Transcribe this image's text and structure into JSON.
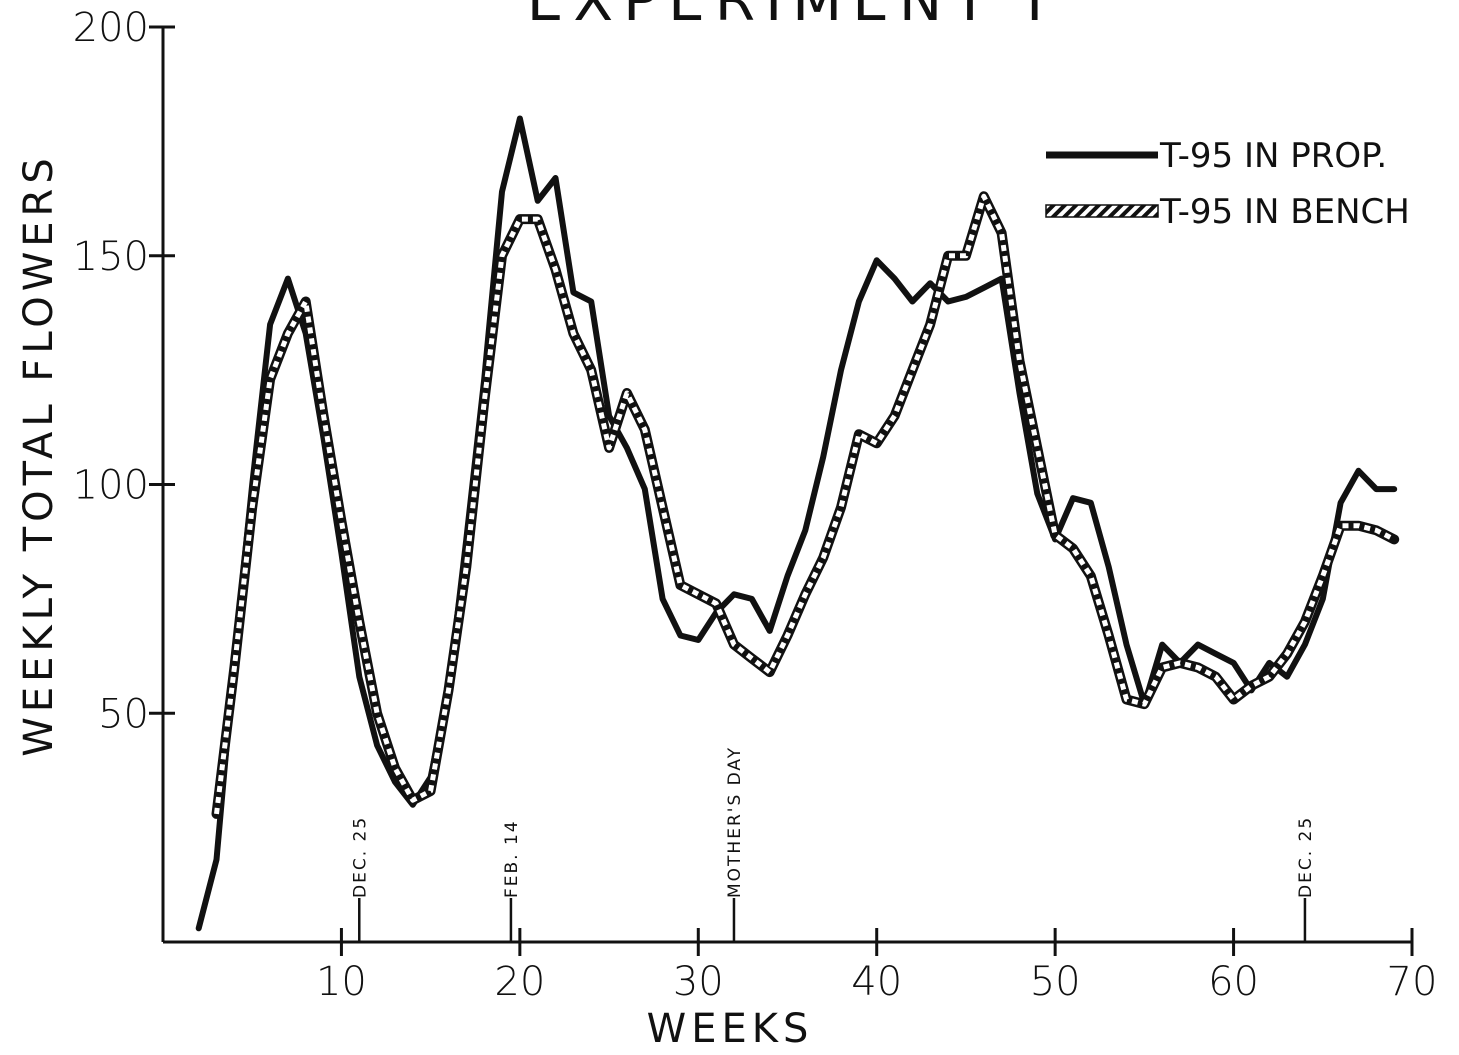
{
  "chart_data": {
    "type": "line",
    "title": "EXPERIMENT I",
    "xlabel": "WEEKS",
    "ylabel": "WEEKLY TOTAL FLOWERS",
    "xlim": [
      0,
      70
    ],
    "ylim": [
      0,
      200
    ],
    "x_ticks": [
      10,
      20,
      30,
      40,
      50,
      60,
      70
    ],
    "y_ticks": [
      50,
      100,
      150,
      200
    ],
    "grid": false,
    "legend_position": "top-right",
    "series": [
      {
        "name": "T-95 IN PROP.",
        "style": "solid",
        "color": "#111111",
        "x": [
          2,
          3,
          4,
          5,
          6,
          7,
          8,
          9,
          10,
          11,
          12,
          13,
          14,
          15,
          16,
          17,
          18,
          19,
          20,
          21,
          22,
          23,
          24,
          25,
          26,
          27,
          28,
          29,
          30,
          31,
          32,
          33,
          34,
          35,
          36,
          37,
          38,
          39,
          40,
          41,
          42,
          43,
          44,
          45,
          46,
          47,
          48,
          49,
          50,
          51,
          52,
          53,
          54,
          55,
          56,
          57,
          58,
          59,
          60,
          61,
          62,
          63,
          64,
          65,
          66,
          67,
          68,
          69
        ],
        "values": [
          3,
          18,
          62,
          100,
          135,
          145,
          133,
          110,
          85,
          58,
          43,
          35,
          30,
          36,
          55,
          88,
          123,
          164,
          180,
          162,
          167,
          142,
          140,
          115,
          108,
          99,
          75,
          67,
          66,
          72,
          76,
          75,
          68,
          80,
          90,
          106,
          125,
          140,
          149,
          145,
          140,
          144,
          140,
          141,
          143,
          145,
          120,
          98,
          88,
          97,
          96,
          82,
          65,
          52,
          65,
          61,
          65,
          63,
          61,
          55,
          61,
          58,
          65,
          75,
          96,
          103,
          99,
          99
        ]
      },
      {
        "name": "T-95 IN BENCH",
        "style": "hatched",
        "color": "#111111",
        "x": [
          3,
          4,
          5,
          6,
          7,
          8,
          9,
          10,
          11,
          12,
          13,
          14,
          15,
          16,
          17,
          18,
          19,
          20,
          21,
          22,
          23,
          24,
          25,
          26,
          27,
          28,
          29,
          30,
          31,
          32,
          33,
          34,
          35,
          36,
          37,
          38,
          39,
          40,
          41,
          42,
          43,
          44,
          45,
          46,
          47,
          48,
          49,
          50,
          51,
          52,
          53,
          54,
          55,
          56,
          57,
          58,
          59,
          60,
          61,
          62,
          63,
          64,
          65,
          66,
          67,
          68,
          69
        ],
        "values": [
          28,
          60,
          95,
          123,
          133,
          140,
          115,
          92,
          70,
          50,
          38,
          31,
          33,
          55,
          82,
          118,
          150,
          158,
          158,
          147,
          133,
          125,
          108,
          120,
          112,
          95,
          78,
          76,
          74,
          65,
          62,
          59,
          67,
          76,
          84,
          95,
          111,
          109,
          115,
          125,
          135,
          150,
          150,
          163,
          155,
          127,
          108,
          89,
          86,
          80,
          67,
          53,
          52,
          60,
          61,
          60,
          58,
          53,
          56,
          58,
          63,
          70,
          80,
          91,
          91,
          90,
          88
        ]
      }
    ],
    "annotations": [
      {
        "text": "DEC. 25",
        "x": 11
      },
      {
        "text": "FEB. 14",
        "x": 19.5
      },
      {
        "text": "MOTHER'S DAY",
        "x": 32
      },
      {
        "text": "DEC. 25",
        "x": 64
      }
    ]
  }
}
